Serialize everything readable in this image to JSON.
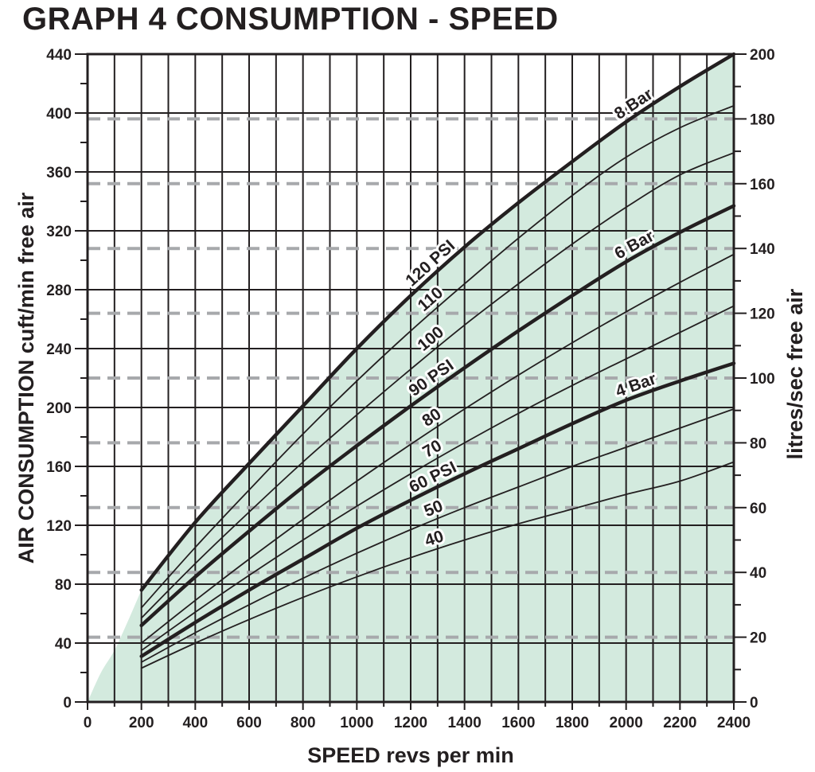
{
  "chart_data": {
    "type": "line",
    "title": "GRAPH 4 CONSUMPTION - SPEED",
    "xlabel": "SPEED revs per min",
    "ylabel": "AIR CONSUMPTION cuft/min free air",
    "y2label": "litres/sec free air",
    "xlim": [
      0,
      2400
    ],
    "ylim": [
      0,
      440
    ],
    "y2lim": [
      0,
      200
    ],
    "x_ticks": [
      "0",
      "200",
      "400",
      "600",
      "800",
      "1000",
      "1200",
      "1400",
      "1600",
      "1800",
      "2000",
      "2200",
      "2400"
    ],
    "y_ticks": [
      "0",
      "40",
      "80",
      "120",
      "160",
      "200",
      "240",
      "280",
      "320",
      "360",
      "400",
      "440"
    ],
    "y2_ticks": [
      "0",
      "20",
      "40",
      "60",
      "80",
      "100",
      "120",
      "140",
      "160",
      "180",
      "200"
    ],
    "grid": true,
    "shaded_region": {
      "color": "#d3eade",
      "lower_boundary": [
        [
          0,
          0
        ],
        [
          50,
          20
        ],
        [
          100,
          35
        ],
        [
          150,
          55
        ],
        [
          200,
          76
        ]
      ],
      "upper_boundary_series": "120 PSI"
    },
    "series": [
      {
        "name": "40",
        "label": "40",
        "heavy": false,
        "label_at": 1300,
        "x": [
          200,
          400,
          600,
          800,
          1000,
          1200,
          1400,
          1600,
          1800,
          2000,
          2200,
          2400
        ],
        "values": [
          23,
          40,
          56,
          71,
          85,
          98,
          110,
          121,
          131,
          141,
          150,
          163
        ]
      },
      {
        "name": "50",
        "label": "50",
        "heavy": false,
        "label_at": 1300,
        "x": [
          200,
          400,
          600,
          800,
          1000,
          1200,
          1400,
          1600,
          1800,
          2000,
          2200,
          2400
        ],
        "values": [
          27,
          47,
          66,
          84,
          101,
          117,
          132,
          146,
          160,
          173,
          186,
          199
        ]
      },
      {
        "name": "60 PSI",
        "label": "60 PSI",
        "heavy": true,
        "label_at": 1300,
        "x": [
          200,
          400,
          600,
          800,
          1000,
          1200,
          1400,
          1600,
          1800,
          2000,
          2200,
          2400
        ],
        "values": [
          31,
          54,
          76,
          97,
          118,
          137,
          155,
          172,
          189,
          205,
          218,
          230
        ]
      },
      {
        "name": "4 Bar",
        "label": "4 Bar",
        "heavy": false,
        "label_at": 2050,
        "labelOnly": "60 PSI"
      },
      {
        "name": "70",
        "label": "70",
        "heavy": false,
        "label_at": 1300,
        "x": [
          200,
          400,
          600,
          800,
          1000,
          1200,
          1400,
          1600,
          1800,
          2000,
          2200,
          2400
        ],
        "values": [
          35,
          61,
          86,
          110,
          133,
          155,
          176,
          196,
          215,
          233,
          251,
          269
        ]
      },
      {
        "name": "80",
        "label": "80",
        "heavy": false,
        "label_at": 1300,
        "x": [
          200,
          400,
          600,
          800,
          1000,
          1200,
          1400,
          1600,
          1800,
          2000,
          2200,
          2400
        ],
        "values": [
          40,
          69,
          97,
          124,
          150,
          175,
          199,
          222,
          244,
          265,
          285,
          304
        ]
      },
      {
        "name": "90 PSI",
        "label": "90 PSI",
        "heavy": true,
        "label_at": 1300,
        "x": [
          200,
          400,
          600,
          800,
          1000,
          1200,
          1400,
          1600,
          1800,
          2000,
          2200,
          2400
        ],
        "values": [
          52,
          85,
          116,
          146,
          174,
          201,
          227,
          252,
          276,
          299,
          319,
          337
        ]
      },
      {
        "name": "6 Bar",
        "label": "6 Bar",
        "heavy": false,
        "label_at": 2050,
        "labelOnly": "90 PSI"
      },
      {
        "name": "100",
        "label": "100",
        "heavy": false,
        "label_at": 1300,
        "x": [
          200,
          400,
          600,
          800,
          1000,
          1200,
          1400,
          1600,
          1800,
          2000,
          2200,
          2400
        ],
        "values": [
          57,
          94,
          129,
          163,
          195,
          226,
          256,
          284,
          311,
          336,
          358,
          373
        ]
      },
      {
        "name": "110",
        "label": "110",
        "heavy": false,
        "label_at": 1300,
        "x": [
          200,
          400,
          600,
          800,
          1000,
          1200,
          1400,
          1600,
          1800,
          2000,
          2200,
          2400
        ],
        "values": [
          64,
          105,
          144,
          182,
          218,
          252,
          284,
          315,
          344,
          370,
          390,
          405
        ]
      },
      {
        "name": "120 PSI",
        "label": "120 PSI",
        "heavy": true,
        "label_at": 1300,
        "x": [
          200,
          400,
          600,
          800,
          1000,
          1200,
          1400,
          1600,
          1800,
          2000,
          2200,
          2400
        ],
        "values": [
          76,
          122,
          162,
          201,
          240,
          276,
          309,
          339,
          367,
          394,
          418,
          440
        ]
      },
      {
        "name": "8 Bar",
        "label": "8 Bar",
        "heavy": false,
        "label_at": 2050,
        "labelOnly": "120 PSI"
      }
    ]
  }
}
